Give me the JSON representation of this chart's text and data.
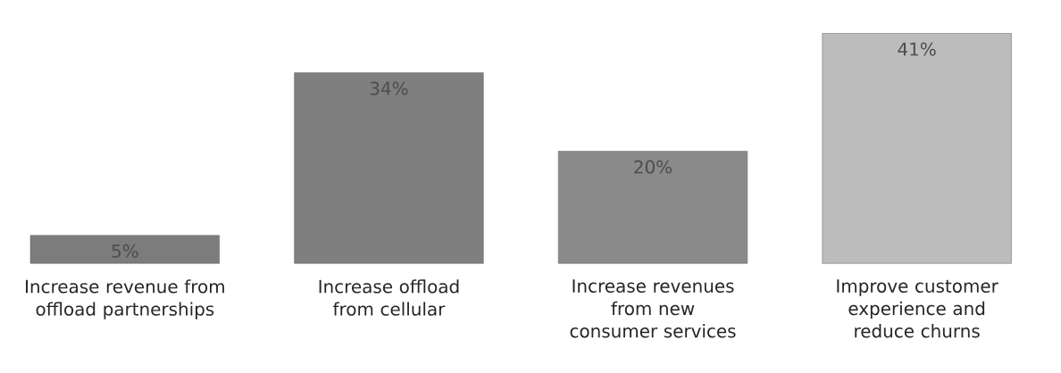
{
  "chart_data": {
    "type": "bar",
    "categories": [
      "Increase revenue from offload partnerships",
      "Increase offload from cellular",
      "Increase revenues from new consumer services",
      "Improve customer experience and reduce churns"
    ],
    "values": [
      5,
      34,
      20,
      41
    ],
    "colors": [
      "#7c7c7c",
      "#7f7f7f",
      "#8a8a8a",
      "#bcbcbc"
    ],
    "value_labels": [
      "5%",
      "34%",
      "20%",
      "41%"
    ]
  }
}
